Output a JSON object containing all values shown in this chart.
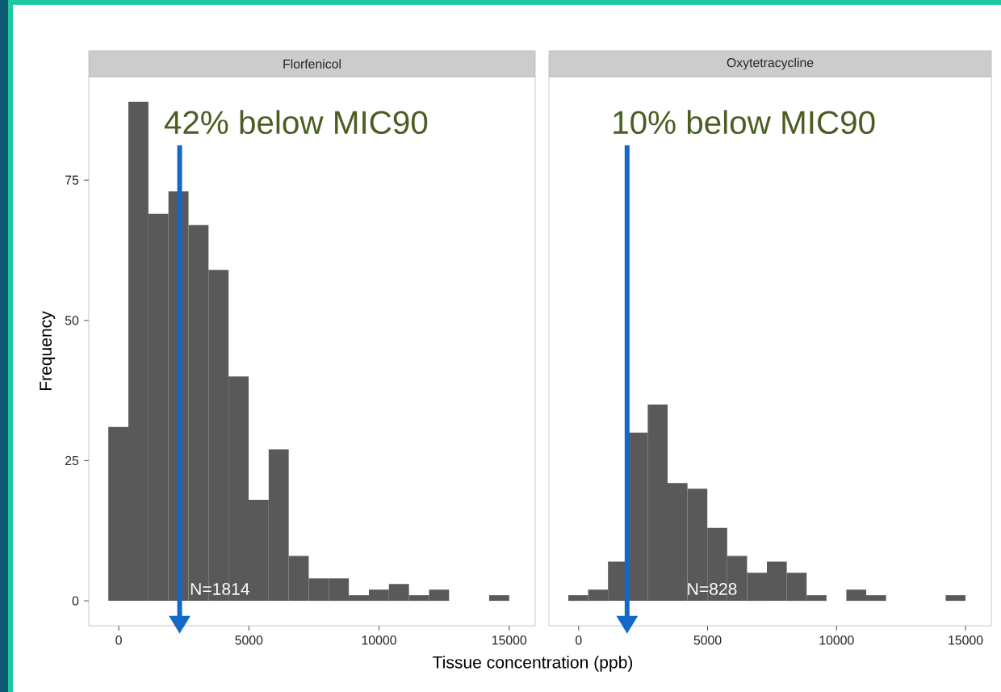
{
  "chart_data": [
    {
      "type": "histogram",
      "title": "Florfenicol",
      "ylabel": "Frequency",
      "xlabel": "Tissue concentration (ppb)",
      "color": "#595959",
      "bins": [
        -400,
        370,
        1140,
        1910,
        2680,
        3450,
        4220,
        4990,
        5760,
        6530,
        7300,
        8070,
        8840,
        9610,
        10380,
        11150,
        11920,
        12690,
        13460,
        14230,
        15000
      ],
      "values": [
        31,
        89,
        69,
        73,
        67,
        59,
        40,
        18,
        27,
        8,
        4,
        4,
        1,
        2,
        3,
        1,
        2,
        0,
        0,
        1
      ],
      "xlim": [
        -1150,
        16000
      ],
      "ylim": [
        -4.45,
        93.45
      ],
      "xticks": [
        0,
        5000,
        10000,
        15000
      ],
      "yticks": [
        0,
        25,
        50,
        75
      ],
      "grid": false,
      "ref_lines": [
        {
          "axis": "x",
          "value": 2340,
          "label": "42% below MIC90",
          "color": "#1469c7"
        }
      ],
      "annotations": [
        "N=1814"
      ]
    },
    {
      "type": "histogram",
      "title": "Oxytetracycline",
      "color": "#595959",
      "bins": [
        -400,
        370,
        1140,
        1910,
        2680,
        3450,
        4220,
        4990,
        5760,
        6530,
        7300,
        8070,
        8840,
        9610,
        10380,
        11150,
        11920,
        12690,
        13460,
        14230,
        15000
      ],
      "values": [
        1,
        2,
        7,
        30,
        35,
        21,
        20,
        13,
        8,
        5,
        7,
        5,
        1,
        0,
        2,
        1,
        0,
        0,
        0,
        1
      ],
      "xlim": [
        -1150,
        16000
      ],
      "ylim": [
        -4.45,
        93.45
      ],
      "xticks": [
        0,
        5000,
        10000,
        15000
      ],
      "yticks": [
        0,
        25,
        50,
        75
      ],
      "grid": false,
      "tick_labels": "x",
      "ref_lines": [
        {
          "axis": "x",
          "value": 1880,
          "label": "10% below MIC90",
          "color": "#1469c7"
        }
      ],
      "annotations": [
        "N=828"
      ]
    }
  ]
}
